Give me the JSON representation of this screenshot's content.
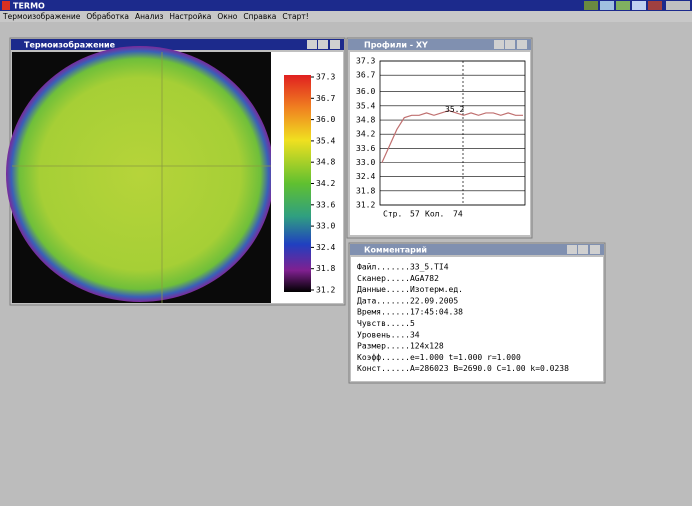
{
  "app": {
    "title": "TERMO",
    "menu": [
      "Термоизображение",
      "Обработка",
      "Анализ",
      "Настройка",
      "Окно",
      "Справка",
      "Старт!"
    ]
  },
  "thermal_window": {
    "title": "Термоизображение",
    "scale_labels": [
      "37.3",
      "36.7",
      "36.0",
      "35.4",
      "34.8",
      "34.2",
      "33.6",
      "33.0",
      "32.4",
      "31.8",
      "31.2"
    ]
  },
  "profile_window": {
    "title": "Профили - XY",
    "chart": {
      "type": "line",
      "ylim": [
        31.2,
        37.3
      ],
      "yticks": [
        {
          "value": 37.3,
          "label": "37.3"
        },
        {
          "value": 36.7,
          "label": "36.7"
        },
        {
          "value": 36.0,
          "label": "36.0"
        },
        {
          "value": 35.4,
          "label": "35.4"
        },
        {
          "value": 34.8,
          "label": "34.8"
        },
        {
          "value": 34.2,
          "label": "34.2"
        },
        {
          "value": 33.6,
          "label": "33.6"
        },
        {
          "value": 33.0,
          "label": "33.0"
        },
        {
          "value": 32.4,
          "label": "32.4"
        },
        {
          "value": 31.8,
          "label": "31.8"
        },
        {
          "value": 31.2,
          "label": "31.2"
        }
      ],
      "values": [
        33.0,
        33.7,
        34.4,
        34.9,
        35.0,
        35.0,
        35.1,
        35.0,
        35.1,
        35.2,
        35.1,
        35.0,
        35.1,
        35.0,
        35.1,
        35.1,
        35.0,
        35.1,
        35.0,
        35.0
      ],
      "color": "#c07070",
      "grid": true,
      "annotation": "35.2",
      "footer": [
        "Стр.",
        "57",
        "Кол.",
        "74"
      ]
    }
  },
  "comment_window": {
    "title": "Комментарий",
    "lines": [
      "Файл.......33_5.TI4",
      "Сканер.....AGA782",
      "Данные.....Изотерм.ед.",
      "Дата.......22.09.2005",
      "Время......17:45:04.38",
      "Чувств.....5",
      "Уровень....34",
      "Размер.....124x128",
      "Коэфф......e=1.000 t=1.000 r=1.000",
      "Конст......A=286023 B=2690.0 C=1.00 k=0.0238"
    ]
  }
}
